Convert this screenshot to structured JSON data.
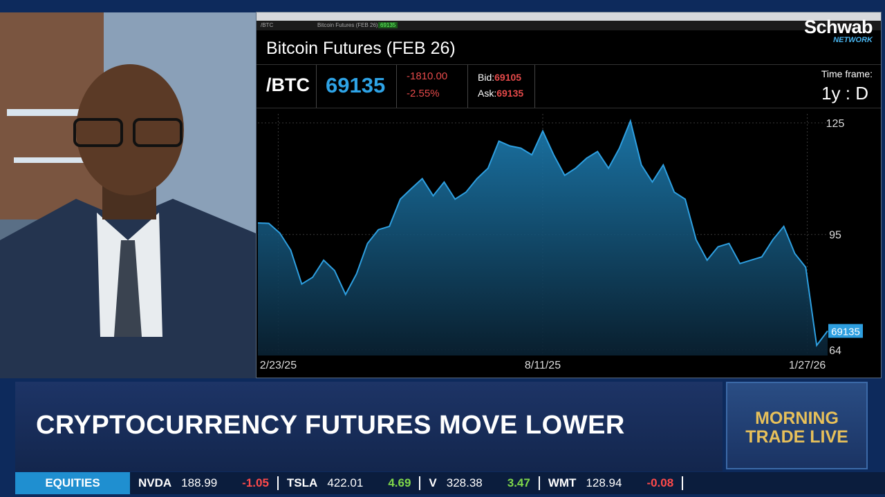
{
  "window_bar": {
    "symbol": "/BTC",
    "name": "Bitcoin Futures (FEB 26)",
    "price": "69135"
  },
  "logo": {
    "brand": "Schwab",
    "sub": "NETWORK"
  },
  "quote": {
    "title": "Bitcoin Futures (FEB 26)",
    "symbol": "/BTC",
    "last": "69135",
    "change": "-1810.00",
    "change_pct": "-2.55%",
    "bid_label": "Bid:",
    "bid": "69105",
    "ask_label": "Ask:",
    "ask": "69135",
    "timeframe_label": "Time frame:",
    "timeframe": "1y : D"
  },
  "chart_data": {
    "type": "area",
    "color": "#2e9fe0",
    "x": [
      "2/10/25",
      "2/17/25",
      "2/24/25",
      "3/3/25",
      "3/10/25",
      "3/17/25",
      "3/24/25",
      "3/31/25",
      "4/7/25",
      "4/14/25",
      "4/21/25",
      "4/28/25",
      "5/5/25",
      "5/12/25",
      "5/19/25",
      "5/26/25",
      "6/2/25",
      "6/9/25",
      "6/16/25",
      "6/23/25",
      "6/30/25",
      "7/7/25",
      "7/14/25",
      "7/21/25",
      "7/28/25",
      "8/4/25",
      "8/11/25",
      "8/18/25",
      "8/25/25",
      "9/1/25",
      "9/8/25",
      "9/15/25",
      "9/22/25",
      "9/29/25",
      "10/6/25",
      "10/13/25",
      "10/20/25",
      "10/27/25",
      "11/3/25",
      "11/10/25",
      "11/17/25",
      "11/24/25",
      "12/1/25",
      "12/8/25",
      "12/15/25",
      "12/22/25",
      "12/29/25",
      "1/5/26",
      "1/12/26",
      "1/19/26",
      "1/26/26",
      "2/2/26",
      "2/9/26"
    ],
    "values": [
      98.1,
      98,
      95.4,
      90.8,
      81.7,
      83.5,
      88.1,
      85.3,
      78.9,
      84.4,
      92.6,
      96.3,
      97.2,
      104.5,
      107.3,
      110,
      105.4,
      109.1,
      104.5,
      106.4,
      110,
      112.8,
      120.1,
      118.8,
      118.2,
      116.4,
      122.8,
      116.4,
      110.9,
      112.8,
      115.5,
      117.3,
      112.8,
      118.2,
      125.5,
      113.7,
      109.1,
      113.7,
      106.4,
      104.5,
      93.6,
      88.1,
      91.7,
      92.6,
      87.2,
      88.1,
      89,
      93.6,
      97.2,
      89.9,
      86.2,
      65.2,
      69.1
    ],
    "xlim": [
      "2/10/25",
      "2/9/26"
    ],
    "xticks": [
      "2/23/25",
      "8/11/25",
      "1/27/26"
    ],
    "ylim": [
      62.5,
      127.4
    ],
    "yticks": [
      64,
      95,
      125
    ],
    "grid": true
  },
  "lower_third": {
    "headline": "CRYPTOCURRENCY FUTURES MOVE LOWER",
    "show": [
      "MORNING",
      "TRADE LIVE"
    ]
  },
  "ticker": {
    "label": "EQUITIES",
    "items": [
      {
        "symbol": "NVDA",
        "price": 188.99,
        "change": -1.05
      },
      {
        "symbol": "TSLA",
        "price": 422.01,
        "change": 4.69
      },
      {
        "symbol": "V",
        "price": 328.38,
        "change": 3.47
      },
      {
        "symbol": "WMT",
        "price": 128.94,
        "change": -0.08
      }
    ]
  }
}
